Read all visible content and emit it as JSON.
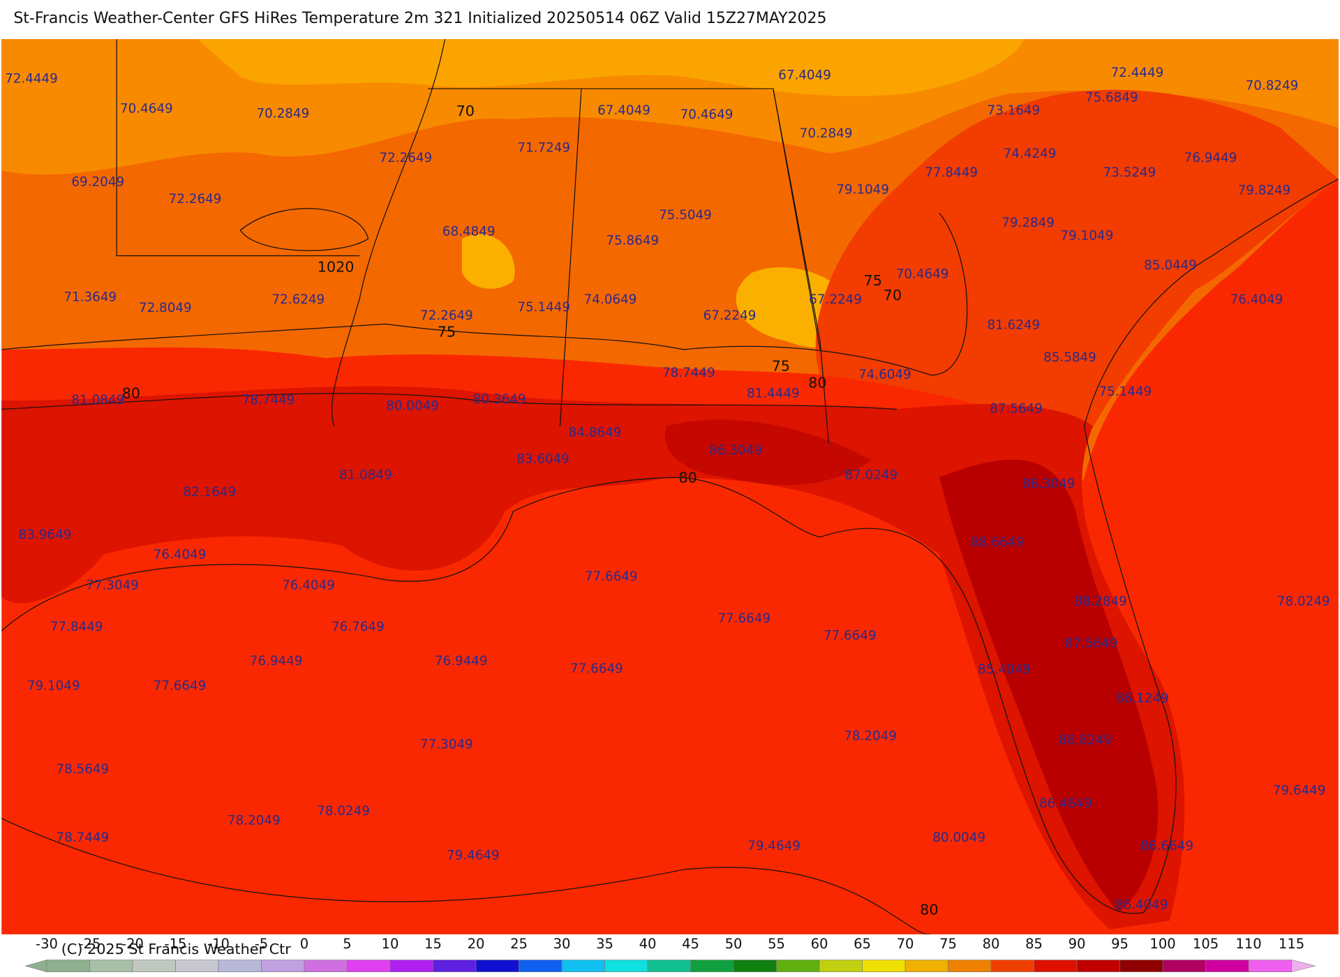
{
  "header": {
    "title": "St-Francis Weather-Center GFS HiRes Temperature 2m  321 Initialized 20250514 06Z Valid 15Z27MAY2025"
  },
  "values": [
    72.4449,
    70.4649,
    70.2849,
    67.4049,
    70.4649,
    67.4049,
    70.2849,
    72.4449,
    75.6849,
    70.8249,
    73.1649,
    72.2649,
    71.7249,
    74.4249,
    76.9449,
    69.2049,
    72.2649,
    77.8449,
    73.5249,
    79.1049,
    79.8249,
    75.5049,
    68.4849,
    79.2849,
    79.1049,
    75.8649,
    85.0449,
    70.4649,
    67.2249,
    71.3649,
    72.8049,
    72.6249,
    74.0649,
    75.1449,
    72.2649,
    67.2249,
    76.4049,
    81.6249,
    85.5849,
    78.7449,
    74.6049,
    75.1449,
    81.0849,
    78.7449,
    80.0049,
    80.3649,
    81.4449,
    87.5649,
    84.8649,
    86.3049,
    83.6049,
    87.0249,
    81.0849,
    86.3049,
    82.1649,
    83.9649,
    88.6649,
    76.4049,
    77.6649,
    77.3049,
    76.4049,
    88.2849,
    78.0249,
    77.6649,
    77.8449,
    76.7649,
    77.6649,
    87.5649,
    76.9449,
    76.9449,
    77.6649,
    85.4049,
    79.1049,
    77.6649,
    86.1249,
    78.2049,
    88.8249,
    77.3049,
    78.5649,
    79.6449,
    86.4649,
    78.0249,
    78.2049,
    80.0049,
    78.7449,
    79.4649,
    86.6649,
    79.4649,
    86.4049
  ],
  "contour_labels": [
    70,
    1020,
    75,
    70,
    75,
    75,
    80,
    80,
    80,
    80
  ],
  "colorbar": {
    "ticks": [
      -30,
      -25,
      -20,
      -15,
      -10,
      -5,
      0,
      5,
      10,
      15,
      20,
      25,
      30,
      35,
      40,
      45,
      50,
      55,
      60,
      65,
      70,
      75,
      80,
      85,
      90,
      95,
      100,
      105,
      110,
      115
    ],
    "colors": [
      "#8fb08f",
      "#a8c0a8",
      "#c0c8c0",
      "#c8c8d0",
      "#b8b8d8",
      "#c0a0e0",
      "#d070e0",
      "#e040f0",
      "#b020f0",
      "#6020e0",
      "#1010d0",
      "#1060f0",
      "#10c0f0",
      "#10e0e0",
      "#10c090",
      "#10a040",
      "#108010",
      "#60b010",
      "#c0d010",
      "#f0e000",
      "#f0b000",
      "#f08000",
      "#f04000",
      "#e01000",
      "#c00000",
      "#900000",
      "#b00060",
      "#d000a0",
      "#f060f0",
      "#f0b0f0"
    ]
  },
  "copyright": "(C) 2025 St Francis Weather Ctr"
}
